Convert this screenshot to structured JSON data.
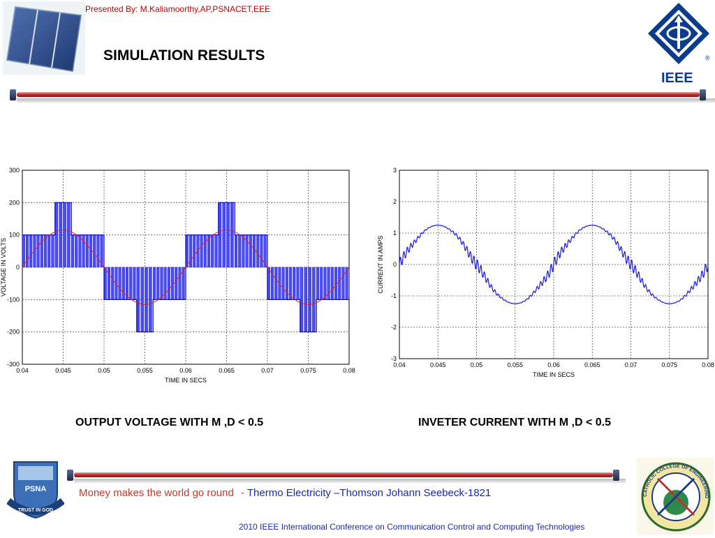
{
  "header": {
    "presenter": "Presented By: M.Kaliamoorthy,AP,PSNACET,EEE",
    "title": "SIMULATION RESULTS",
    "ieee_label": "IEEE",
    "ieee_registered": "®"
  },
  "captions": {
    "left": "OUTPUT VOLTAGE WITH M ,D < 0.5",
    "right": "INVETER CURRENT WITH M ,D < 0.5"
  },
  "footer": {
    "quote_part1": "Money makes the world go round",
    "quote_separator": "-",
    "quote_part2": "Thermo Electricity –Thomson Johann Seebeck-1821",
    "conference": "2010 IEEE International Conference on Communication Control and Computing Technologies",
    "psna_logo_text": "PSNA",
    "psna_motto": "TRUST IN GOD",
    "catholic_logo_text": "CATHOLIC COLLEGE OF ENGINEERING"
  },
  "colors": {
    "plot_line": "#1414e6",
    "sine_line": "#e02020",
    "bar_fill": "#4a4aff",
    "title_red": "#c00000",
    "ieee_blue": "#0a3c8c"
  },
  "chart_data": [
    {
      "type": "line",
      "title": "",
      "xlabel": "TIME IN SECS",
      "ylabel": "VOLTAGE IN VOLTS",
      "xlim": [
        0.04,
        0.08
      ],
      "ylim": [
        -300,
        300
      ],
      "grid": true,
      "x_ticks": [
        "0.04",
        "0.045",
        "0.05",
        "0.055",
        "0.06",
        "0.065",
        "0.07",
        "0.075",
        "0.08"
      ],
      "y_ticks": [
        "300",
        "200",
        "100",
        "0",
        "-100",
        "-200",
        "-300"
      ],
      "series": [
        {
          "kind": "step",
          "x": [
            0.04,
            0.044,
            0.044,
            0.046,
            0.046,
            0.05,
            0.05,
            0.054,
            0.054,
            0.056,
            0.056,
            0.06,
            0.06,
            0.064,
            0.064,
            0.066,
            0.066,
            0.07,
            0.07,
            0.074,
            0.074,
            0.076,
            0.076,
            0.08
          ],
          "y": [
            100,
            100,
            200,
            200,
            100,
            100,
            -100,
            -100,
            -200,
            -200,
            -100,
            -100,
            100,
            100,
            200,
            200,
            100,
            100,
            -100,
            -100,
            -200,
            -200,
            -100,
            -100
          ]
        },
        {
          "kind": "sine",
          "amplitude": 115,
          "frequency_hz": 50,
          "x_start": 0.04,
          "x_end": 0.08
        }
      ]
    },
    {
      "type": "line",
      "title": "",
      "xlabel": "TIME IN SECS",
      "ylabel": "CURRENT IN AMPS",
      "xlim": [
        0.04,
        0.08
      ],
      "ylim": [
        -3,
        3
      ],
      "grid": true,
      "x_ticks": [
        "0.04",
        "0.045",
        "0.05",
        "0.055",
        "0.06",
        "0.065",
        "0.07",
        "0.075",
        "0.08"
      ],
      "y_ticks": [
        "3",
        "2",
        "1",
        "0",
        "-1",
        "-2",
        "-3"
      ],
      "series": [
        {
          "kind": "current",
          "peak": 1.25,
          "x_start": 0.04,
          "x_end": 0.08
        }
      ]
    }
  ]
}
